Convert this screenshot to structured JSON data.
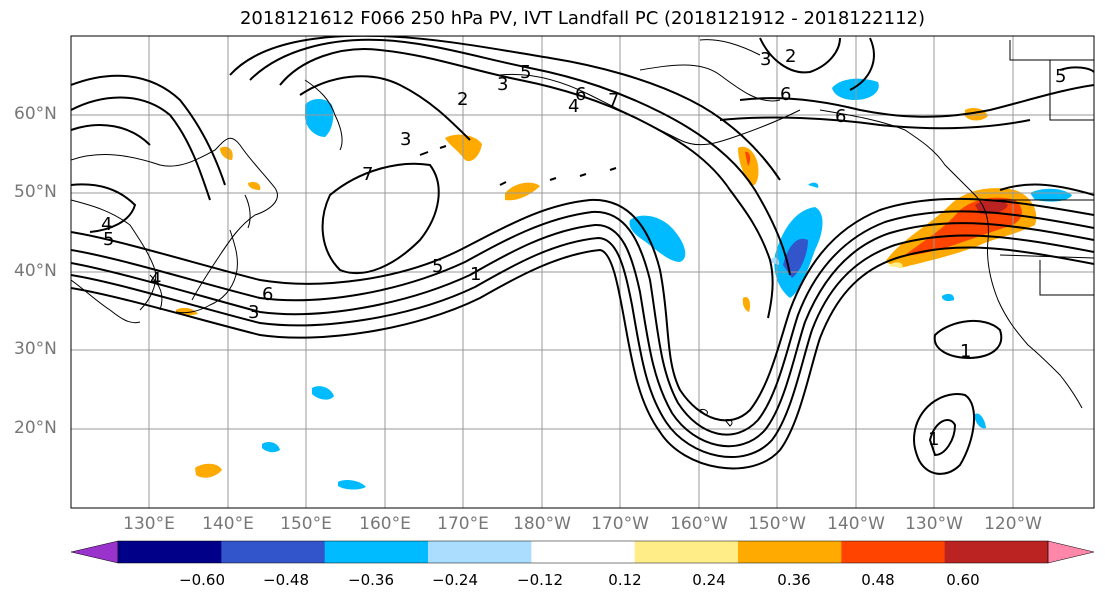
{
  "title": "2018121612 F066 250 hPa PV, IVT Landfall PC (2018121912 - 2018122112)",
  "lat_labels": [
    "60°N",
    "50°N",
    "40°N",
    "30°N",
    "20°N"
  ],
  "lon_labels": [
    "130°E",
    "140°E",
    "150°E",
    "160°E",
    "170°E",
    "180°W",
    "170°W",
    "160°W",
    "150°W",
    "140°W",
    "130°W",
    "120°W"
  ],
  "contour_labels": [
    "2",
    "3",
    "5",
    "6",
    "7",
    "4",
    "3",
    "6",
    "7",
    "4",
    "5",
    "1",
    "5",
    "6",
    "3",
    "4",
    "1",
    "1",
    "6",
    "5",
    "2",
    "3"
  ],
  "colorbar": {
    "colors": [
      "#9933cc",
      "#000088",
      "#3355cc",
      "#00bbff",
      "#aaddff",
      "#ffffff",
      "#ffee88",
      "#ffaa00",
      "#ff4400",
      "#bb2222",
      "#ff88aa"
    ],
    "tick_labels": [
      "−0.60",
      "−0.48",
      "−0.36",
      "−0.24",
      "−0.12",
      "0.12",
      "0.24",
      "0.36",
      "0.48",
      "0.60"
    ]
  },
  "colors": {
    "grid": "#999999",
    "contour": "#000000",
    "coast": "#000000"
  }
}
